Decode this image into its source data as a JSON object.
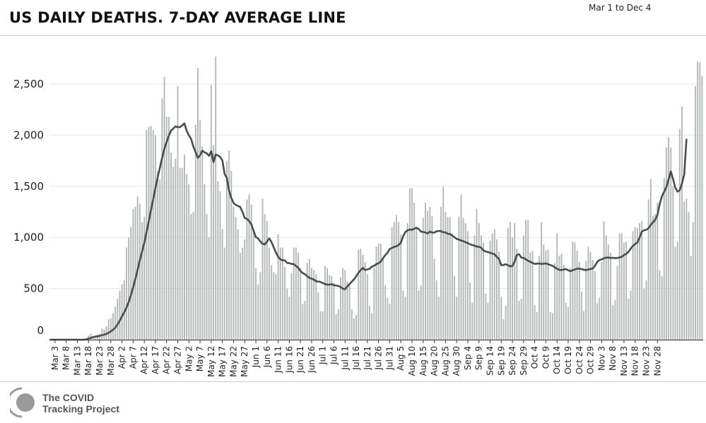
{
  "header": {
    "title": "US DAILY DEATHS. 7-DAY AVERAGE LINE",
    "date_range": "Mar 1 to Dec 4"
  },
  "footer": {
    "logo_line1": "The COVID",
    "logo_line2": "Tracking Project"
  },
  "colors": {
    "bar": "#b5bab9",
    "line": "#4a4d4f",
    "grid": "#e6e6e6",
    "axis": "#333333"
  },
  "chart_data": {
    "type": "bar",
    "title": "US DAILY DEATHS. 7-DAY AVERAGE LINE",
    "xlabel": "",
    "ylabel": "",
    "ylim": [
      0,
      2800
    ],
    "yticks": [
      0,
      500,
      1000,
      1500,
      2000,
      2500
    ],
    "ytick_labels": [
      "0",
      "500",
      "1,000",
      "1,500",
      "2,000",
      "2,500"
    ],
    "grid": true,
    "legend": "none",
    "x_start": "2020-03-01",
    "x_end": "2020-12-04",
    "xtick_labels": [
      "Mar 3",
      "Mar 8",
      "Mar 13",
      "Mar 18",
      "Mar 23",
      "Mar 28",
      "Apr 2",
      "Apr 7",
      "Apr 12",
      "Apr 17",
      "Apr 22",
      "Apr 27",
      "May 2",
      "May 7",
      "May 12",
      "May 17",
      "May 22",
      "May 27",
      "Jun 1",
      "Jun 6",
      "Jun 11",
      "Jun 16",
      "Jun 21",
      "Jun 26",
      "Jul 1",
      "Jul 6",
      "Jul 11",
      "Jul 16",
      "Jul 21",
      "Jul 26",
      "Jul 31",
      "Aug 5",
      "Aug 10",
      "Aug 15",
      "Aug 20",
      "Aug 25",
      "Aug 30",
      "Sep 4",
      "Sep 9",
      "Sep 14",
      "Sep 19",
      "Sep 24",
      "Sep 29",
      "Oct 4",
      "Oct 9",
      "Oct 14",
      "Oct 19",
      "Oct 24",
      "Oct 29",
      "Nov 3",
      "Nov 8",
      "Nov 13",
      "Nov 18",
      "Nov 23",
      "Nov 28"
    ],
    "series": [
      {
        "kind": "bars",
        "values": [
          0,
          0,
          0,
          0,
          0,
          0,
          0,
          0,
          0,
          0,
          0,
          0,
          0,
          0,
          0,
          0,
          10,
          40,
          60,
          30,
          30,
          50,
          60,
          110,
          100,
          130,
          200,
          210,
          260,
          320,
          400,
          480,
          540,
          580,
          900,
          1000,
          1100,
          1280,
          1300,
          1400,
          1330,
          1150,
          1200,
          2050,
          2080,
          2090,
          2050,
          2000,
          1650,
          1570,
          2360,
          2570,
          2180,
          2180,
          1830,
          1690,
          1770,
          2480,
          1680,
          1680,
          1810,
          1620,
          1520,
          1230,
          1250,
          2100,
          2660,
          2150,
          1890,
          1520,
          1230,
          1000,
          2490,
          1900,
          2770,
          1550,
          1450,
          1080,
          900,
          1750,
          1850,
          1650,
          1300,
          1200,
          1080,
          850,
          900,
          980,
          1370,
          1420,
          1320,
          1080,
          700,
          540,
          660,
          1380,
          1230,
          1160,
          900,
          730,
          660,
          640,
          1030,
          900,
          900,
          710,
          500,
          420,
          650,
          900,
          900,
          850,
          700,
          350,
          380,
          750,
          790,
          700,
          680,
          640,
          460,
          280,
          280,
          720,
          700,
          630,
          620,
          560,
          250,
          300,
          610,
          700,
          680,
          570,
          540,
          300,
          210,
          240,
          880,
          890,
          830,
          760,
          640,
          330,
          260,
          700,
          910,
          940,
          940,
          800,
          530,
          410,
          350,
          1100,
          1150,
          1220,
          1150,
          1030,
          480,
          420,
          1140,
          1480,
          1480,
          1340,
          1100,
          480,
          530,
          1190,
          1340,
          1260,
          1300,
          1210,
          790,
          580,
          420,
          1300,
          1500,
          1250,
          1200,
          1200,
          1040,
          620,
          420,
          1200,
          1420,
          1190,
          1140,
          1060,
          560,
          360,
          1020,
          1280,
          1140,
          1020,
          950,
          450,
          360,
          970,
          1040,
          1080,
          980,
          860,
          420,
          200,
          330,
          1090,
          1150,
          1000,
          1140,
          890,
          380,
          400,
          1020,
          1170,
          1170,
          850,
          870,
          340,
          270,
          820,
          1150,
          930,
          870,
          880,
          270,
          260,
          750,
          1040,
          820,
          840,
          730,
          360,
          320,
          700,
          960,
          950,
          870,
          760,
          470,
          280,
          770,
          910,
          860,
          780,
          670,
          360,
          410,
          760,
          1160,
          1020,
          930,
          850,
          340,
          390,
          720,
          1040,
          1040,
          950,
          960,
          400,
          480,
          1060,
          1100,
          1090,
          1140,
          1160,
          500,
          580,
          1370,
          1570,
          1210,
          1230,
          1340,
          680,
          620,
          1580,
          1880,
          1980,
          1880,
          1500,
          910,
          960,
          2060,
          2280,
          1350,
          1380,
          1250,
          820,
          1150,
          2480,
          2720,
          2710,
          2580
        ]
      },
      {
        "kind": "line",
        "name": "",
        "values": [
          0,
          0,
          0,
          0,
          0,
          0,
          0,
          0,
          0,
          0,
          0,
          0,
          0,
          0,
          0,
          0,
          3,
          10,
          17,
          25,
          30,
          33,
          37,
          43,
          49,
          56,
          67,
          81,
          98,
          117,
          148,
          186,
          228,
          268,
          312,
          368,
          436,
          510,
          594,
          684,
          777,
          861,
          946,
          1053,
          1156,
          1268,
          1375,
          1484,
          1589,
          1683,
          1780,
          1868,
          1932,
          1994,
          2045,
          2064,
          2086,
          2078,
          2079,
          2096,
          2115,
          2042,
          1998,
          1963,
          1887,
          1836,
          1778,
          1803,
          1848,
          1832,
          1822,
          1798,
          1843,
          1737,
          1811,
          1802,
          1787,
          1753,
          1620,
          1581,
          1457,
          1386,
          1337,
          1318,
          1307,
          1298,
          1250,
          1191,
          1181,
          1160,
          1128,
          1064,
          1002,
          990,
          961,
          938,
          932,
          958,
          991,
          955,
          904,
          852,
          810,
          785,
          777,
          775,
          751,
          748,
          741,
          739,
          721,
          704,
          672,
          651,
          641,
          621,
          605,
          596,
          588,
          571,
          568,
          565,
          552,
          545,
          538,
          539,
          542,
          533,
          529,
          525,
          515,
          499,
          493,
          521,
          544,
          567,
          590,
          621,
          655,
          680,
          702,
          681,
          686,
          694,
          714,
          722,
          739,
          746,
          764,
          797,
          826,
          850,
          887,
          897,
          907,
          914,
          925,
          948,
          1010,
          1052,
          1069,
          1077,
          1075,
          1085,
          1095,
          1082,
          1057,
          1053,
          1048,
          1039,
          1057,
          1048,
          1047,
          1060,
          1063,
          1062,
          1050,
          1050,
          1036,
          1033,
          1018,
          1002,
          986,
          978,
          970,
          963,
          953,
          944,
          933,
          925,
          920,
          910,
          909,
          899,
          873,
          862,
          856,
          850,
          842,
          835,
          811,
          787,
          728,
          730,
          738,
          728,
          717,
          722,
          764,
          830,
          836,
          802,
          800,
          786,
          772,
          762,
          751,
          741,
          744,
          745,
          741,
          743,
          746,
          738,
          730,
          722,
          707,
          694,
          683,
          681,
          686,
          690,
          679,
          669,
          679,
          686,
          695,
          693,
          691,
          684,
          680,
          686,
          691,
          696,
          722,
          761,
          779,
          785,
          796,
          802,
          804,
          799,
          801,
          797,
          799,
          804,
          810,
          829,
          838,
          859,
          890,
          917,
          935,
          950,
          998,
          1057,
          1070,
          1075,
          1090,
          1122,
          1147,
          1173,
          1220,
          1325,
          1402,
          1446,
          1493,
          1568,
          1645,
          1571,
          1487,
          1448,
          1462,
          1526,
          1614,
          1957
        ]
      }
    ]
  }
}
